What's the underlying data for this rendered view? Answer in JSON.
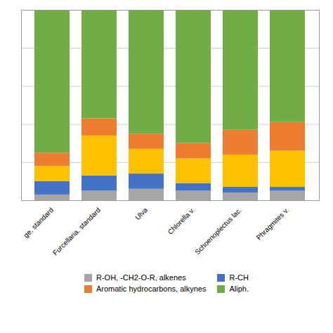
{
  "chart_data": {
    "type": "bar",
    "stacked": true,
    "categories": [
      "ge, standard",
      "Furcellaria, standard",
      "Ulva",
      "Chlorella v.",
      "Schoenoplectus lac.",
      "Phragmites v."
    ],
    "series": [
      {
        "name": "R-OH, -CH2-O-R, alkenes",
        "color": "#a6a6a6",
        "values": [
          3,
          5,
          6,
          5,
          4,
          5
        ]
      },
      {
        "name": "R-CH",
        "color": "#4472c4",
        "values": [
          7,
          8,
          8,
          4,
          3,
          2
        ]
      },
      {
        "name": null,
        "color": "#ffc000",
        "values": [
          8,
          21,
          13,
          13,
          17,
          19
        ]
      },
      {
        "name": "Aromatic hydrocarbons, alkynes",
        "color": "#ed7d31",
        "values": [
          7,
          9,
          8,
          8,
          13,
          15
        ]
      },
      {
        "name": "Aliph.",
        "color": "#70ad47",
        "values": [
          75,
          57,
          65,
          70,
          63,
          59
        ]
      }
    ],
    "ylim": [
      0,
      100
    ],
    "yticks": [
      20,
      40,
      60,
      80,
      100
    ],
    "grid": true,
    "tick_labels": "x",
    "legend": "bottom"
  }
}
